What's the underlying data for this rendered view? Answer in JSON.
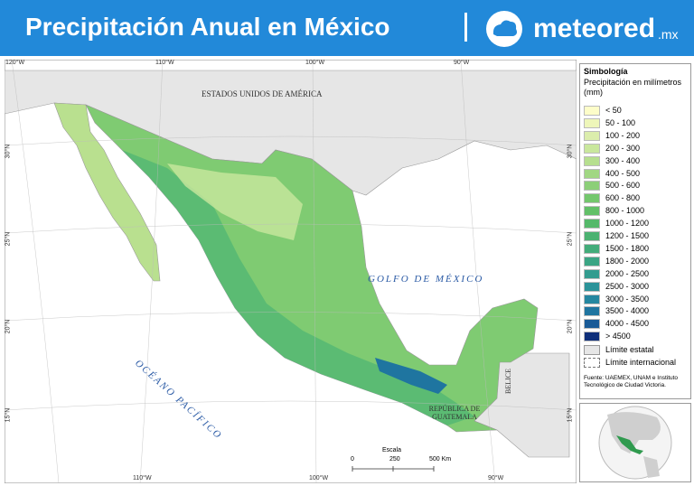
{
  "header": {
    "title": "Precipitación Anual en México",
    "brand": "meteored",
    "brand_suffix": ".mx"
  },
  "map": {
    "labels": {
      "usa": "ESTADOS UNIDOS DE AMÉRICA",
      "gulf": "GOLFO DE MÉXICO",
      "pacific": "OCÉANO PACÍFICO",
      "belize": "BELICE",
      "guatemala": "REPÚBLICA DE GUATEMALA"
    },
    "top_ticks": [
      "120°W",
      "110°W",
      "100°W",
      "90°W"
    ],
    "bottom_ticks": [
      "110°W",
      "100°W",
      "90°W"
    ],
    "left_ticks": [
      "30°N",
      "25°N",
      "20°N",
      "15°N"
    ],
    "right_ticks": [
      "30°N",
      "25°N",
      "20°N",
      "15°N"
    ],
    "scale": {
      "title": "Escala",
      "labels": [
        "0",
        "250",
        "500 Km"
      ]
    }
  },
  "legend": {
    "title": "Simbología",
    "subtitle": "Precipitación en milímetros (mm)",
    "classes": [
      {
        "label": "< 50",
        "color": "#fdfdc9"
      },
      {
        "label": "50 - 100",
        "color": "#eef6b9"
      },
      {
        "label": "100 - 200",
        "color": "#dbedac"
      },
      {
        "label": "200 - 300",
        "color": "#c9e79d"
      },
      {
        "label": "300 - 400",
        "color": "#b6df8f"
      },
      {
        "label": "400 - 500",
        "color": "#a1d783"
      },
      {
        "label": "500 - 600",
        "color": "#8ccf78"
      },
      {
        "label": "600 - 800",
        "color": "#74c76d"
      },
      {
        "label": "800 - 1000",
        "color": "#62c068"
      },
      {
        "label": "1000 - 1200",
        "color": "#55b96a"
      },
      {
        "label": "1200 - 1500",
        "color": "#4bb271"
      },
      {
        "label": "1500 - 1800",
        "color": "#43ac7a"
      },
      {
        "label": "1800 - 2000",
        "color": "#3ba584"
      },
      {
        "label": "2000 - 2500",
        "color": "#339c8f"
      },
      {
        "label": "2500 - 3000",
        "color": "#2b9399"
      },
      {
        "label": "3000 - 3500",
        "color": "#2587a0"
      },
      {
        "label": "3500 - 4000",
        "color": "#1f75a0"
      },
      {
        "label": "4000 - 4500",
        "color": "#1a5b97"
      },
      {
        "label": "> 4500",
        "color": "#0f2f7a"
      }
    ],
    "boundaries": [
      {
        "label": "Límite estatal"
      },
      {
        "label": "Límite internacional"
      }
    ],
    "source": "Fuente: UAEMEX, UNAM e Instituto Tecnológico de Ciudad Victoria."
  }
}
